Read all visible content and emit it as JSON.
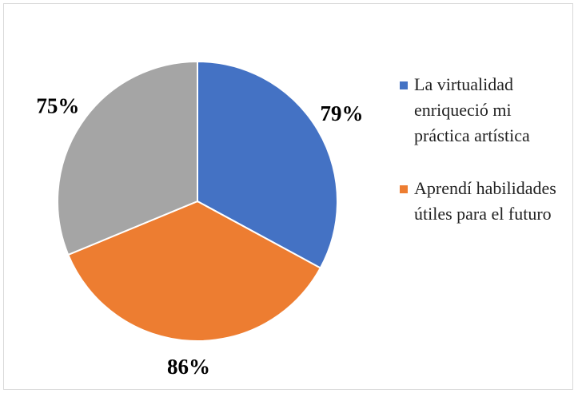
{
  "chart_data": {
    "type": "pie",
    "categories": [
      "La virtualidad enriqueció mi práctica artística",
      "Aprendí habilidades útiles para el futuro",
      null
    ],
    "values": [
      79,
      86,
      75
    ],
    "value_labels": [
      "79%",
      "86%",
      "75%"
    ],
    "colors": [
      "#4472c4",
      "#ed7d31",
      "#a5a5a5"
    ]
  }
}
